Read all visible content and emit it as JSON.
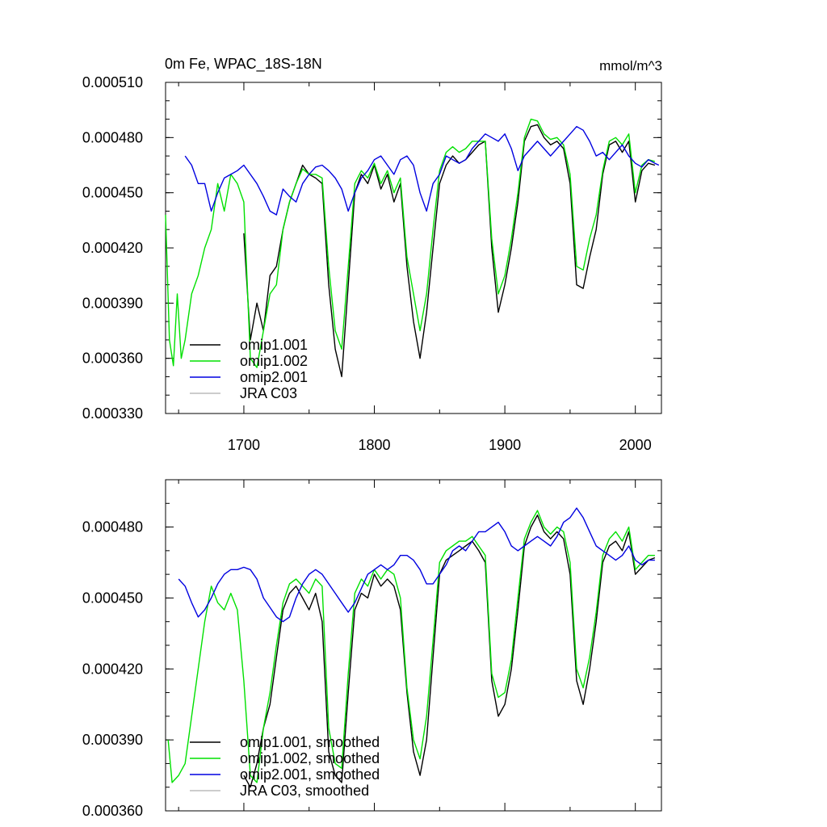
{
  "chart_data": [
    {
      "type": "line",
      "title": "0m Fe, WPAC_18S-18N",
      "units": "mmol/m^3",
      "xlim": [
        1640,
        2020
      ],
      "ylim": [
        0.00033,
        0.00051
      ],
      "xticks": [
        1700,
        1800,
        1900,
        2000
      ],
      "xtick_labels": [
        "1700",
        "1800",
        "1900",
        "2000"
      ],
      "yticks": [
        0.00033,
        0.00036,
        0.00039,
        0.00042,
        0.00045,
        0.00048,
        0.00051
      ],
      "ytick_labels": [
        "0.000330",
        "0.000360",
        "0.000390",
        "0.000420",
        "0.000450",
        "0.000480",
        "0.000510"
      ],
      "legend_position": "bottom-left",
      "series": [
        {
          "name": "omip1.001",
          "color": "#000000",
          "x": [
            1700,
            1705,
            1710,
            1715,
            1720,
            1725,
            1730,
            1735,
            1740,
            1745,
            1750,
            1755,
            1760,
            1765,
            1770,
            1775,
            1780,
            1785,
            1790,
            1795,
            1800,
            1805,
            1810,
            1815,
            1820,
            1825,
            1830,
            1835,
            1840,
            1845,
            1850,
            1855,
            1860,
            1865,
            1870,
            1875,
            1880,
            1885,
            1890,
            1895,
            1900,
            1905,
            1910,
            1915,
            1920,
            1925,
            1930,
            1935,
            1940,
            1945,
            1950,
            1955,
            1960,
            1965,
            1970,
            1975,
            1980,
            1985,
            1990,
            1995,
            2000,
            2005,
            2010,
            2015
          ],
          "values": [
            0.000428,
            0.00037,
            0.00039,
            0.000375,
            0.000405,
            0.00041,
            0.00043,
            0.000445,
            0.000455,
            0.000465,
            0.00046,
            0.000458,
            0.000455,
            0.0004,
            0.000365,
            0.00035,
            0.0004,
            0.00045,
            0.00046,
            0.000455,
            0.000465,
            0.000452,
            0.00046,
            0.000445,
            0.000455,
            0.00041,
            0.00038,
            0.00036,
            0.000385,
            0.00042,
            0.000455,
            0.000465,
            0.00047,
            0.000466,
            0.000468,
            0.000472,
            0.000476,
            0.000478,
            0.00042,
            0.000385,
            0.0004,
            0.00042,
            0.000445,
            0.000478,
            0.000486,
            0.000487,
            0.00048,
            0.000476,
            0.000478,
            0.000474,
            0.000455,
            0.0004,
            0.000398,
            0.000415,
            0.00043,
            0.00046,
            0.000476,
            0.000478,
            0.000472,
            0.000478,
            0.000445,
            0.000462,
            0.000466,
            0.000465
          ]
        },
        {
          "name": "omip1.002",
          "color": "#00e000",
          "x": [
            1640,
            1643,
            1646,
            1649,
            1652,
            1655,
            1660,
            1665,
            1670,
            1675,
            1680,
            1685,
            1690,
            1695,
            1700,
            1705,
            1710,
            1715,
            1720,
            1725,
            1730,
            1735,
            1740,
            1745,
            1750,
            1755,
            1760,
            1765,
            1770,
            1775,
            1780,
            1785,
            1790,
            1795,
            1800,
            1805,
            1810,
            1815,
            1820,
            1825,
            1830,
            1835,
            1840,
            1845,
            1850,
            1855,
            1860,
            1865,
            1870,
            1875,
            1880,
            1885,
            1890,
            1895,
            1900,
            1905,
            1910,
            1915,
            1920,
            1925,
            1930,
            1935,
            1940,
            1945,
            1950,
            1955,
            1960,
            1965,
            1970,
            1975,
            1980,
            1985,
            1990,
            1995,
            2000,
            2005,
            2010,
            2015
          ],
          "values": [
            0.000438,
            0.00037,
            0.000356,
            0.000395,
            0.00036,
            0.00037,
            0.000395,
            0.000405,
            0.00042,
            0.00043,
            0.000455,
            0.00044,
            0.00046,
            0.000455,
            0.000445,
            0.00036,
            0.000355,
            0.000375,
            0.000395,
            0.0004,
            0.00043,
            0.000445,
            0.000455,
            0.000463,
            0.00046,
            0.00046,
            0.000458,
            0.00041,
            0.000375,
            0.000365,
            0.00041,
            0.000455,
            0.000462,
            0.000458,
            0.000466,
            0.000455,
            0.000462,
            0.00045,
            0.000458,
            0.000415,
            0.000395,
            0.000375,
            0.000395,
            0.00043,
            0.000462,
            0.000472,
            0.000475,
            0.000472,
            0.000474,
            0.000478,
            0.000478,
            0.000478,
            0.000425,
            0.000395,
            0.000405,
            0.000425,
            0.00045,
            0.00048,
            0.00049,
            0.000489,
            0.000482,
            0.000479,
            0.00048,
            0.000476,
            0.00046,
            0.00041,
            0.000408,
            0.000425,
            0.000438,
            0.000462,
            0.000478,
            0.00048,
            0.000476,
            0.000482,
            0.00045,
            0.000465,
            0.000468,
            0.000467
          ]
        },
        {
          "name": "omip2.001",
          "color": "#0000e0",
          "x": [
            1655,
            1660,
            1665,
            1670,
            1675,
            1680,
            1685,
            1690,
            1695,
            1700,
            1705,
            1710,
            1715,
            1720,
            1725,
            1730,
            1735,
            1740,
            1745,
            1750,
            1755,
            1760,
            1765,
            1770,
            1775,
            1780,
            1785,
            1790,
            1795,
            1800,
            1805,
            1810,
            1815,
            1820,
            1825,
            1830,
            1835,
            1840,
            1845,
            1850,
            1855,
            1860,
            1865,
            1870,
            1875,
            1880,
            1885,
            1890,
            1895,
            1900,
            1905,
            1910,
            1915,
            1920,
            1925,
            1930,
            1935,
            1940,
            1945,
            1950,
            1955,
            1960,
            1965,
            1970,
            1975,
            1980,
            1985,
            1990,
            1995,
            2000,
            2005,
            2010,
            2015,
            2018
          ],
          "values": [
            0.00047,
            0.000465,
            0.000455,
            0.000455,
            0.00044,
            0.00045,
            0.000458,
            0.00046,
            0.000462,
            0.000465,
            0.00046,
            0.000455,
            0.000448,
            0.00044,
            0.000438,
            0.000452,
            0.000448,
            0.000445,
            0.000455,
            0.00046,
            0.000464,
            0.000465,
            0.000462,
            0.000458,
            0.000452,
            0.00044,
            0.00045,
            0.000458,
            0.000462,
            0.000468,
            0.00047,
            0.000465,
            0.00046,
            0.000468,
            0.00047,
            0.000465,
            0.00045,
            0.00044,
            0.000455,
            0.00046,
            0.00047,
            0.000468,
            0.000466,
            0.000468,
            0.000474,
            0.000478,
            0.000482,
            0.00048,
            0.000478,
            0.000482,
            0.000474,
            0.000462,
            0.00047,
            0.000474,
            0.000478,
            0.000474,
            0.00047,
            0.000474,
            0.000478,
            0.000482,
            0.000486,
            0.000484,
            0.000478,
            0.00047,
            0.000472,
            0.000468,
            0.000472,
            0.000476,
            0.00047,
            0.000466,
            0.000464,
            0.000468,
            0.000466,
            0.000465
          ]
        },
        {
          "name": "JRA C03",
          "color": "#bbbbbb",
          "x": [],
          "values": []
        }
      ]
    },
    {
      "type": "line",
      "title": "",
      "units": "",
      "xlim": [
        1640,
        2020
      ],
      "ylim": [
        0.00036,
        0.0005
      ],
      "xticks": [
        1700,
        1800,
        1900,
        2000
      ],
      "yticks": [
        0.00036,
        0.00039,
        0.00042,
        0.00045,
        0.00048
      ],
      "ytick_labels": [
        "0.000360",
        "0.000390",
        "0.000420",
        "0.000450",
        "0.000480"
      ],
      "legend_position": "bottom-left",
      "series": [
        {
          "name": "omip1.001, smoothed",
          "color": "#000000",
          "x": [
            1700,
            1705,
            1710,
            1715,
            1720,
            1725,
            1730,
            1735,
            1740,
            1745,
            1750,
            1755,
            1760,
            1765,
            1770,
            1775,
            1780,
            1785,
            1790,
            1795,
            1800,
            1805,
            1810,
            1815,
            1820,
            1825,
            1830,
            1835,
            1840,
            1845,
            1850,
            1855,
            1860,
            1865,
            1870,
            1875,
            1880,
            1885,
            1890,
            1895,
            1900,
            1905,
            1910,
            1915,
            1920,
            1925,
            1930,
            1935,
            1940,
            1945,
            1950,
            1955,
            1960,
            1965,
            1970,
            1975,
            1980,
            1985,
            1990,
            1995,
            2000,
            2005,
            2010,
            2015
          ],
          "values": [
            0.000375,
            0.00037,
            0.00038,
            0.000395,
            0.000405,
            0.000425,
            0.000445,
            0.000452,
            0.000455,
            0.00045,
            0.000445,
            0.000452,
            0.00044,
            0.000385,
            0.000375,
            0.000372,
            0.00041,
            0.000445,
            0.000452,
            0.00045,
            0.00046,
            0.000455,
            0.000458,
            0.000455,
            0.000445,
            0.00041,
            0.000385,
            0.000375,
            0.00039,
            0.000425,
            0.00046,
            0.000466,
            0.000468,
            0.00047,
            0.000472,
            0.000474,
            0.00047,
            0.000465,
            0.000415,
            0.0004,
            0.000405,
            0.00042,
            0.000445,
            0.000472,
            0.00048,
            0.000485,
            0.000478,
            0.000475,
            0.000478,
            0.000475,
            0.00046,
            0.000415,
            0.000405,
            0.00042,
            0.00044,
            0.000465,
            0.000472,
            0.000474,
            0.00047,
            0.000478,
            0.00046,
            0.000463,
            0.000466,
            0.000467
          ]
        },
        {
          "name": "omip1.002, smoothed",
          "color": "#00e000",
          "x": [
            1642,
            1645,
            1650,
            1655,
            1660,
            1665,
            1670,
            1675,
            1680,
            1685,
            1690,
            1695,
            1700,
            1705,
            1710,
            1715,
            1720,
            1725,
            1730,
            1735,
            1740,
            1745,
            1750,
            1755,
            1760,
            1765,
            1770,
            1775,
            1780,
            1785,
            1790,
            1795,
            1800,
            1805,
            1810,
            1815,
            1820,
            1825,
            1830,
            1835,
            1840,
            1845,
            1850,
            1855,
            1860,
            1865,
            1870,
            1875,
            1880,
            1885,
            1890,
            1895,
            1900,
            1905,
            1910,
            1915,
            1920,
            1925,
            1930,
            1935,
            1940,
            1945,
            1950,
            1955,
            1960,
            1965,
            1970,
            1975,
            1980,
            1985,
            1990,
            1995,
            2000,
            2005,
            2010,
            2015
          ],
          "values": [
            0.00039,
            0.000372,
            0.000375,
            0.00038,
            0.0004,
            0.00042,
            0.00044,
            0.000455,
            0.000448,
            0.000445,
            0.000452,
            0.000445,
            0.000415,
            0.000375,
            0.000372,
            0.000395,
            0.00041,
            0.00043,
            0.000448,
            0.000456,
            0.000458,
            0.000455,
            0.000452,
            0.000458,
            0.000455,
            0.000395,
            0.00038,
            0.000378,
            0.000418,
            0.000452,
            0.000458,
            0.000455,
            0.000462,
            0.000458,
            0.000462,
            0.00046,
            0.00045,
            0.000412,
            0.00039,
            0.000382,
            0.0004,
            0.000432,
            0.000465,
            0.00047,
            0.000472,
            0.000474,
            0.000474,
            0.000476,
            0.000472,
            0.000468,
            0.000418,
            0.000408,
            0.00041,
            0.000424,
            0.00045,
            0.000475,
            0.000482,
            0.000487,
            0.00048,
            0.000477,
            0.00048,
            0.000478,
            0.000465,
            0.00042,
            0.000412,
            0.000425,
            0.000444,
            0.000468,
            0.000475,
            0.000478,
            0.000474,
            0.00048,
            0.000462,
            0.000465,
            0.000468,
            0.000468
          ]
        },
        {
          "name": "omip2.001, smoothed",
          "color": "#0000e0",
          "x": [
            1650,
            1655,
            1660,
            1665,
            1670,
            1675,
            1680,
            1685,
            1690,
            1695,
            1700,
            1705,
            1710,
            1715,
            1720,
            1725,
            1730,
            1735,
            1740,
            1745,
            1750,
            1755,
            1760,
            1765,
            1770,
            1775,
            1780,
            1785,
            1790,
            1795,
            1800,
            1805,
            1810,
            1815,
            1820,
            1825,
            1830,
            1835,
            1840,
            1845,
            1850,
            1855,
            1860,
            1865,
            1870,
            1875,
            1880,
            1885,
            1890,
            1895,
            1900,
            1905,
            1910,
            1915,
            1920,
            1925,
            1930,
            1935,
            1940,
            1945,
            1950,
            1955,
            1960,
            1965,
            1970,
            1975,
            1980,
            1985,
            1990,
            1995,
            2000,
            2005,
            2010,
            2015
          ],
          "values": [
            0.000458,
            0.000455,
            0.000448,
            0.000442,
            0.000445,
            0.00045,
            0.000456,
            0.00046,
            0.000462,
            0.000462,
            0.000463,
            0.000462,
            0.000458,
            0.00045,
            0.000446,
            0.000442,
            0.00044,
            0.000442,
            0.00045,
            0.000456,
            0.00046,
            0.000462,
            0.00046,
            0.000456,
            0.000452,
            0.000448,
            0.000444,
            0.000448,
            0.000454,
            0.00046,
            0.000462,
            0.000464,
            0.000462,
            0.000464,
            0.000468,
            0.000468,
            0.000466,
            0.000462,
            0.000456,
            0.000456,
            0.00046,
            0.000464,
            0.00047,
            0.000472,
            0.00047,
            0.000474,
            0.000478,
            0.000478,
            0.00048,
            0.000482,
            0.000478,
            0.000472,
            0.00047,
            0.000472,
            0.000474,
            0.000476,
            0.000474,
            0.000472,
            0.000476,
            0.000482,
            0.000484,
            0.000488,
            0.000484,
            0.000478,
            0.000472,
            0.00047,
            0.000468,
            0.000466,
            0.000468,
            0.000472,
            0.000466,
            0.000464,
            0.000466,
            0.000466
          ]
        },
        {
          "name": "JRA C03, smoothed",
          "color": "#bbbbbb",
          "x": [],
          "values": []
        }
      ]
    }
  ]
}
